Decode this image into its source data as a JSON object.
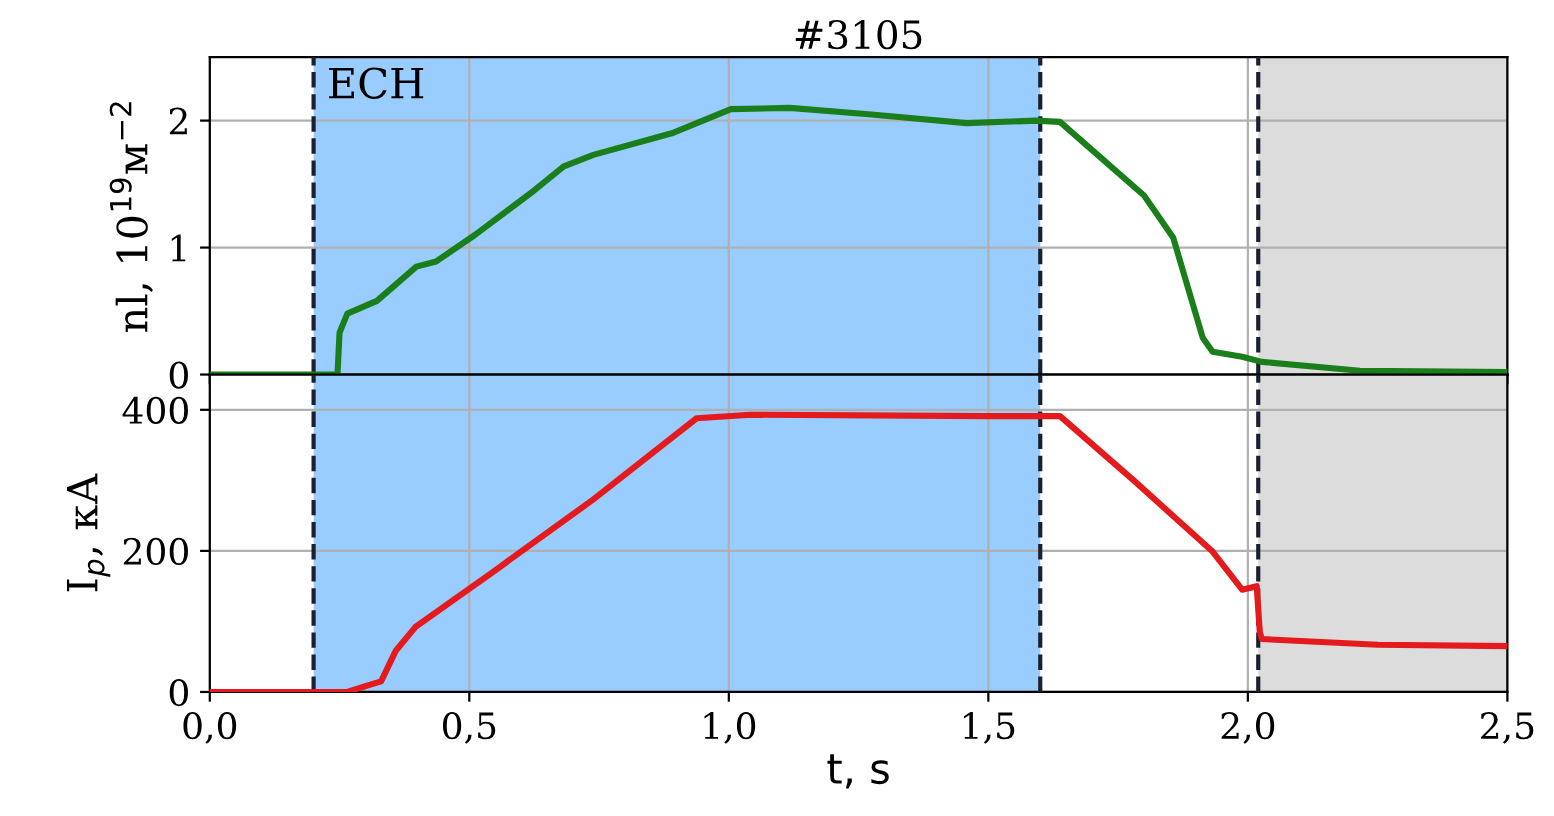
{
  "chart_data": [
    {
      "type": "line",
      "title": "#3105",
      "ylabel": "nl, 10$^{19}$м$^{−2}$",
      "xlim": [
        0,
        2.5
      ],
      "ylim": [
        0,
        2.5
      ],
      "xticks": [
        0,
        0.5,
        1.0,
        1.5,
        2.0,
        2.5
      ],
      "yticks": [
        0,
        1,
        2
      ],
      "tick_labels": "y",
      "grid": true,
      "line_style": "solid",
      "marker": "none",
      "series": [
        {
          "color": "#1a7f1a",
          "x": [
            0,
            0.246,
            0.25,
            0.265,
            0.322,
            0.398,
            0.436,
            0.511,
            0.625,
            0.682,
            0.739,
            0.89,
            1.004,
            1.117,
            1.269,
            1.458,
            1.591,
            1.638,
            1.705,
            1.8,
            1.856,
            1.913,
            1.932,
            1.989,
            2.027,
            2.216,
            2.5
          ],
          "values": [
            0,
            0,
            0.33,
            0.48,
            0.58,
            0.85,
            0.89,
            1.1,
            1.45,
            1.64,
            1.73,
            1.9,
            2.09,
            2.1,
            2.05,
            1.98,
            2.0,
            1.99,
            1.75,
            1.41,
            1.08,
            0.29,
            0.18,
            0.14,
            0.1,
            0.03,
            0.02
          ]
        }
      ],
      "bands": [
        {
          "axis": "x",
          "from": 0.2,
          "to": 1.6,
          "label": "ECH",
          "color": "#99ccff"
        },
        {
          "axis": "x",
          "from": 2.02,
          "to": 2.5,
          "color": "#dcdcdc"
        }
      ],
      "ref_lines": [
        {
          "axis": "x",
          "value": 0.2,
          "color": "#1a2030",
          "line_style": "dashed"
        },
        {
          "axis": "x",
          "value": 1.6,
          "color": "#1a2030",
          "line_style": "dashed"
        },
        {
          "axis": "x",
          "value": 2.02,
          "color": "#1a2030",
          "line_style": "dashed"
        }
      ]
    },
    {
      "type": "line",
      "xlabel": "t, s",
      "ylabel": "I$_{p}$, кА",
      "xlim": [
        0,
        2.5
      ],
      "ylim": [
        0,
        450
      ],
      "xticks": [
        {
          "value": 0,
          "label": "0,0"
        },
        {
          "value": 0.5,
          "label": "0,5"
        },
        {
          "value": 1.0,
          "label": "1,0"
        },
        {
          "value": 1.5,
          "label": "1,5"
        },
        {
          "value": 2.0,
          "label": "2,0"
        },
        {
          "value": 2.5,
          "label": "2,5"
        }
      ],
      "yticks": [
        0,
        200,
        400
      ],
      "grid": true,
      "line_style": "solid",
      "marker": "none",
      "series": [
        {
          "color": "#e41a1c",
          "x": [
            0,
            0.265,
            0.303,
            0.33,
            0.358,
            0.396,
            0.549,
            0.739,
            0.938,
            1.042,
            1.496,
            1.638,
            1.78,
            1.932,
            1.989,
            2.017,
            2.023,
            2.027,
            2.25,
            2.5
          ],
          "values": [
            0,
            0,
            9,
            15,
            58,
            92,
            172,
            273,
            388,
            393,
            391,
            391,
            300,
            199,
            145,
            150,
            85,
            75,
            67,
            65
          ]
        }
      ],
      "bands": [
        {
          "axis": "x",
          "from": 0.2,
          "to": 1.6,
          "color": "#99ccff"
        },
        {
          "axis": "x",
          "from": 2.02,
          "to": 2.5,
          "color": "#dcdcdc"
        }
      ],
      "ref_lines": [
        {
          "axis": "x",
          "value": 0.2,
          "color": "#1a2030",
          "line_style": "dashed"
        },
        {
          "axis": "x",
          "value": 1.6,
          "color": "#1a2030",
          "line_style": "dashed"
        },
        {
          "axis": "x",
          "value": 2.02,
          "color": "#1a2030",
          "line_style": "dashed"
        }
      ]
    }
  ]
}
